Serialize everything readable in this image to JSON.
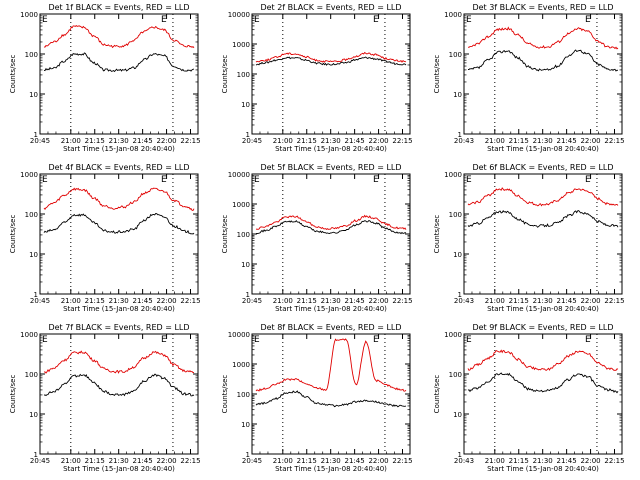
{
  "figure": {
    "background": "#ffffff"
  },
  "colors": {
    "events": "#000000",
    "lld": "#e00000",
    "axes": "#000000"
  },
  "chart_data": [
    {
      "type": "line",
      "title": "Det 1f BLACK = Events, RED = LLD",
      "xlabel": "Start Time (15-Jan-08 20:40:40)",
      "ylabel": "Counts/sec",
      "x_ticks": [
        "20:45",
        "21:00",
        "21:15",
        "21:30",
        "21:45",
        "22:00",
        "22:15"
      ],
      "y_ticks": [
        "1",
        "10",
        "100",
        "1000"
      ],
      "xlim_minutes": [
        0,
        99
      ],
      "ylim": [
        1,
        1000
      ],
      "yscale": "log",
      "markers": [
        "E",
        "E"
      ],
      "marker_lines_minutes": [
        19.3,
        83.3
      ],
      "series": [
        {
          "name": "Events",
          "color": "#000000",
          "values": [
            40,
            44,
            65,
            100,
            100,
            60,
            40,
            39,
            39,
            45,
            72,
            100,
            90,
            50,
            40,
            40
          ]
        },
        {
          "name": "LLD",
          "color": "#e00000",
          "values": [
            150,
            200,
            300,
            490,
            460,
            280,
            170,
            155,
            160,
            220,
            360,
            470,
            400,
            220,
            160,
            150
          ]
        }
      ]
    },
    {
      "type": "line",
      "title": "Det 2f BLACK = Events, RED = LLD",
      "xlabel": "Start Time (15-Jan-08 20:40:40)",
      "ylabel": "Counts/sec",
      "x_ticks": [
        "20:45",
        "21:00",
        "21:15",
        "21:30",
        "21:45",
        "22:00",
        "22:15"
      ],
      "y_ticks": [
        "1",
        "10",
        "100",
        "1000",
        "10000"
      ],
      "xlim_minutes": [
        0,
        99
      ],
      "ylim": [
        1,
        10000
      ],
      "yscale": "log",
      "markers": [
        "E",
        "E"
      ],
      "marker_lines_minutes": [
        19.3,
        83.3
      ],
      "series": [
        {
          "name": "Events",
          "color": "#000000",
          "values": [
            210,
            240,
            290,
            350,
            340,
            290,
            230,
            210,
            210,
            240,
            300,
            350,
            320,
            260,
            220,
            210
          ]
        },
        {
          "name": "LLD",
          "color": "#e00000",
          "values": [
            260,
            290,
            360,
            480,
            470,
            370,
            290,
            260,
            260,
            300,
            390,
            500,
            440,
            330,
            280,
            260
          ]
        }
      ]
    },
    {
      "type": "line",
      "title": "Det 3f BLACK = Events, RED = LLD",
      "xlabel": "Start Time (15-Jan-08 20:40:40)",
      "ylabel": "Counts/sec",
      "x_ticks": [
        "20:43",
        "21:00",
        "21:15",
        "21:30",
        "21:45",
        "22:00",
        "22:15"
      ],
      "y_ticks": [
        "1",
        "10",
        "100",
        "1000"
      ],
      "xlim_minutes": [
        0,
        99
      ],
      "ylim": [
        1,
        1000
      ],
      "yscale": "log",
      "markers": [
        "E",
        "E"
      ],
      "marker_lines_minutes": [
        19.3,
        83.3
      ],
      "series": [
        {
          "name": "Events",
          "color": "#000000",
          "values": [
            40,
            45,
            70,
            110,
            120,
            80,
            48,
            40,
            40,
            50,
            90,
            125,
            100,
            55,
            42,
            40
          ]
        },
        {
          "name": "LLD",
          "color": "#e00000",
          "values": [
            140,
            180,
            270,
            410,
            430,
            300,
            180,
            150,
            150,
            200,
            320,
            430,
            370,
            210,
            150,
            140
          ]
        }
      ]
    },
    {
      "type": "line",
      "title": "Det 4f BLACK = Events, RED = LLD",
      "xlabel": "Start Time (15-Jan-08 20:40:40)",
      "ylabel": "Counts/sec",
      "x_ticks": [
        "20:45",
        "21:00",
        "21:15",
        "21:30",
        "21:45",
        "22:00",
        "22:15"
      ],
      "y_ticks": [
        "1",
        "10",
        "100",
        "1000"
      ],
      "xlim_minutes": [
        0,
        99
      ],
      "ylim": [
        1,
        1000
      ],
      "yscale": "log",
      "markers": [
        "E",
        "E"
      ],
      "marker_lines_minutes": [
        19.3,
        83.3
      ],
      "series": [
        {
          "name": "Events",
          "color": "#000000",
          "values": [
            35,
            40,
            60,
            95,
            95,
            60,
            38,
            35,
            36,
            42,
            70,
            100,
            85,
            50,
            37,
            33
          ]
        },
        {
          "name": "LLD",
          "color": "#e00000",
          "values": [
            140,
            190,
            290,
            420,
            400,
            250,
            160,
            140,
            150,
            200,
            330,
            420,
            370,
            220,
            160,
            130
          ]
        }
      ]
    },
    {
      "type": "line",
      "title": "Det 5f BLACK = Events, RED = LLD",
      "xlabel": "Start Time (15-Jan-08 20:40:40)",
      "ylabel": "Counts/sec",
      "x_ticks": [
        "20:45",
        "21:00",
        "21:15",
        "21:30",
        "21:45",
        "22:00",
        "22:15"
      ],
      "y_ticks": [
        "1",
        "10",
        "100",
        "1000",
        "10000"
      ],
      "xlim_minutes": [
        0,
        99
      ],
      "ylim": [
        1,
        10000
      ],
      "yscale": "log",
      "markers": [
        "E",
        "E"
      ],
      "marker_lines_minutes": [
        19.3,
        83.3
      ],
      "series": [
        {
          "name": "Events",
          "color": "#000000",
          "values": [
            110,
            130,
            180,
            260,
            260,
            180,
            125,
            110,
            110,
            140,
            200,
            270,
            230,
            150,
            115,
            105
          ]
        },
        {
          "name": "LLD",
          "color": "#e00000",
          "values": [
            150,
            180,
            250,
            370,
            380,
            260,
            175,
            150,
            155,
            190,
            280,
            390,
            330,
            210,
            160,
            150
          ]
        }
      ]
    },
    {
      "type": "line",
      "title": "Det 6f BLACK = Events, RED = LLD",
      "xlabel": "Start Time (15-Jan-08 20:40:40)",
      "ylabel": "Counts/sec",
      "x_ticks": [
        "20:43",
        "21:00",
        "21:15",
        "21:30",
        "21:45",
        "22:00",
        "22:15"
      ],
      "y_ticks": [
        "1",
        "10",
        "100",
        "1000"
      ],
      "xlim_minutes": [
        0,
        99
      ],
      "ylim": [
        1,
        1000
      ],
      "yscale": "log",
      "markers": [
        "E",
        "E"
      ],
      "marker_lines_minutes": [
        19.3,
        83.3
      ],
      "series": [
        {
          "name": "Events",
          "color": "#000000",
          "values": [
            50,
            58,
            80,
            115,
            110,
            75,
            55,
            50,
            52,
            60,
            90,
            115,
            100,
            65,
            52,
            50
          ]
        },
        {
          "name": "LLD",
          "color": "#e00000",
          "values": [
            170,
            200,
            290,
            420,
            410,
            280,
            195,
            170,
            175,
            220,
            330,
            420,
            370,
            240,
            180,
            170
          ]
        }
      ]
    },
    {
      "type": "line",
      "title": "Det 7f BLACK = Events, RED = LLD",
      "xlabel": "Start Time (15-Jan-08 20:40:40)",
      "ylabel": "Counts/sec",
      "x_ticks": [
        "20:45",
        "21:00",
        "21:15",
        "21:30",
        "21:45",
        "22:00",
        "22:15"
      ],
      "y_ticks": [
        "1",
        "10",
        "100",
        "1000"
      ],
      "xlim_minutes": [
        0,
        99
      ],
      "ylim": [
        1,
        1000
      ],
      "yscale": "log",
      "markers": [
        "E",
        "E"
      ],
      "marker_lines_minutes": [
        19.3,
        83.3
      ],
      "series": [
        {
          "name": "Events",
          "color": "#000000",
          "values": [
            30,
            36,
            55,
            90,
            95,
            60,
            36,
            30,
            31,
            38,
            65,
            95,
            80,
            45,
            32,
            30
          ]
        },
        {
          "name": "LLD",
          "color": "#e00000",
          "values": [
            110,
            140,
            220,
            340,
            350,
            220,
            135,
            115,
            115,
            150,
            250,
            350,
            300,
            170,
            120,
            110
          ]
        }
      ]
    },
    {
      "type": "line",
      "title": "Det 8f BLACK = Events, RED = LLD",
      "xlabel": "Start Time (15-Jan-08 20:40:40)",
      "ylabel": "Counts/sec",
      "x_ticks": [
        "20:45",
        "21:00",
        "21:15",
        "21:30",
        "21:45",
        "22:00",
        "22:15"
      ],
      "y_ticks": [
        "1",
        "10",
        "100",
        "1000",
        "10000"
      ],
      "xlim_minutes": [
        0,
        99
      ],
      "ylim": [
        1,
        10000
      ],
      "yscale": "log",
      "markers": [
        "E",
        "E"
      ],
      "marker_lines_minutes": [
        19.3,
        83.3
      ],
      "series": [
        {
          "name": "Events",
          "color": "#000000",
          "values": [
            45,
            50,
            70,
            110,
            120,
            80,
            50,
            45,
            40,
            45,
            55,
            60,
            55,
            45,
            40,
            40
          ]
        },
        {
          "name": "LLD",
          "color": "#e00000",
          "values": [
            130,
            150,
            210,
            300,
            310,
            220,
            160,
            140,
            6500,
            6500,
            200,
            5500,
            280,
            200,
            150,
            130
          ]
        }
      ]
    },
    {
      "type": "line",
      "title": "Det 9f BLACK = Events, RED = LLD",
      "xlabel": "Start Time (15-Jan-08 20:40:40)",
      "ylabel": "Counts/sec",
      "x_ticks": [
        "20:43",
        "21:00",
        "21:15",
        "21:30",
        "21:45",
        "22:00",
        "22:15"
      ],
      "y_ticks": [
        "1",
        "10",
        "100",
        "1000"
      ],
      "xlim_minutes": [
        0,
        99
      ],
      "ylim": [
        1,
        1000
      ],
      "yscale": "log",
      "markers": [
        "E",
        "E"
      ],
      "marker_lines_minutes": [
        19.3,
        83.3
      ],
      "series": [
        {
          "name": "Events",
          "color": "#000000",
          "values": [
            38,
            45,
            65,
            100,
            100,
            65,
            42,
            38,
            38,
            45,
            72,
            100,
            85,
            50,
            40,
            36
          ]
        },
        {
          "name": "LLD",
          "color": "#e00000",
          "values": [
            130,
            170,
            250,
            370,
            360,
            230,
            150,
            130,
            130,
            180,
            280,
            370,
            320,
            190,
            140,
            125
          ]
        }
      ]
    }
  ]
}
